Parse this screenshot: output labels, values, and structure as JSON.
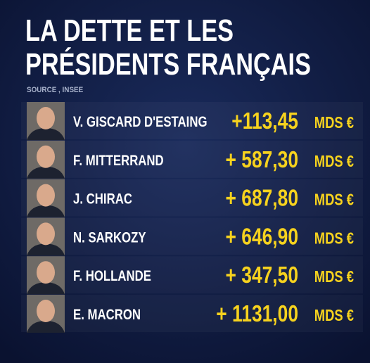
{
  "title": {
    "line1": "LA DETTE ET LES",
    "line2": "PRÉSIDENTS FRANÇAIS"
  },
  "source": "SOURCE , INSEE",
  "rows": [
    {
      "name": "V. GISCARD D'ESTAING",
      "amount": "+113,45",
      "unit": "MDS €"
    },
    {
      "name": "F. MITTERRAND",
      "amount": "+ 587,30",
      "unit": "MDS €"
    },
    {
      "name": "J. CHIRAC",
      "amount": "+ 687,80",
      "unit": "MDS €"
    },
    {
      "name": "N. SARKOZY",
      "amount": "+ 646,90",
      "unit": "MDS €"
    },
    {
      "name": "F. HOLLANDE",
      "amount": "+ 347,50",
      "unit": "MDS €"
    },
    {
      "name": "E. MACRON",
      "amount": "+ 1131,00",
      "unit": "MDS €"
    }
  ]
}
